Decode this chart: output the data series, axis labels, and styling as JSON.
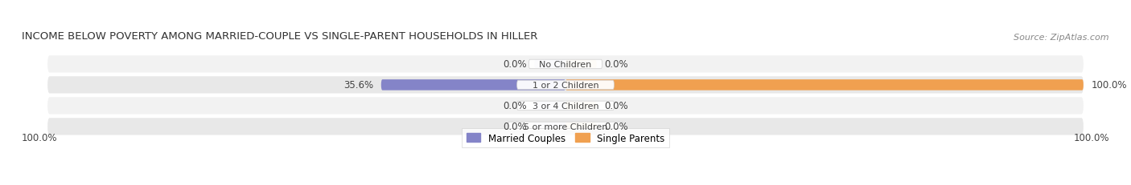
{
  "title": "INCOME BELOW POVERTY AMONG MARRIED-COUPLE VS SINGLE-PARENT HOUSEHOLDS IN HILLER",
  "source": "Source: ZipAtlas.com",
  "categories": [
    "No Children",
    "1 or 2 Children",
    "3 or 4 Children",
    "5 or more Children"
  ],
  "married_values": [
    0.0,
    35.6,
    0.0,
    0.0
  ],
  "single_values": [
    0.0,
    100.0,
    0.0,
    0.0
  ],
  "married_color": "#8484c8",
  "single_color": "#f0a050",
  "married_color_light": "#b8b8de",
  "single_color_light": "#f5c890",
  "row_bg_even": "#f2f2f2",
  "row_bg_odd": "#e8e8e8",
  "title_fontsize": 9.5,
  "source_fontsize": 8,
  "label_fontsize": 8.5,
  "category_fontsize": 8,
  "legend_fontsize": 8.5,
  "axis_label_left": "100.0%",
  "axis_label_right": "100.0%",
  "max_value": 100.0,
  "stub_size": 6.0,
  "title_color": "#333333",
  "text_color": "#444444",
  "source_color": "#888888",
  "legend_married": "Married Couples",
  "legend_single": "Single Parents"
}
